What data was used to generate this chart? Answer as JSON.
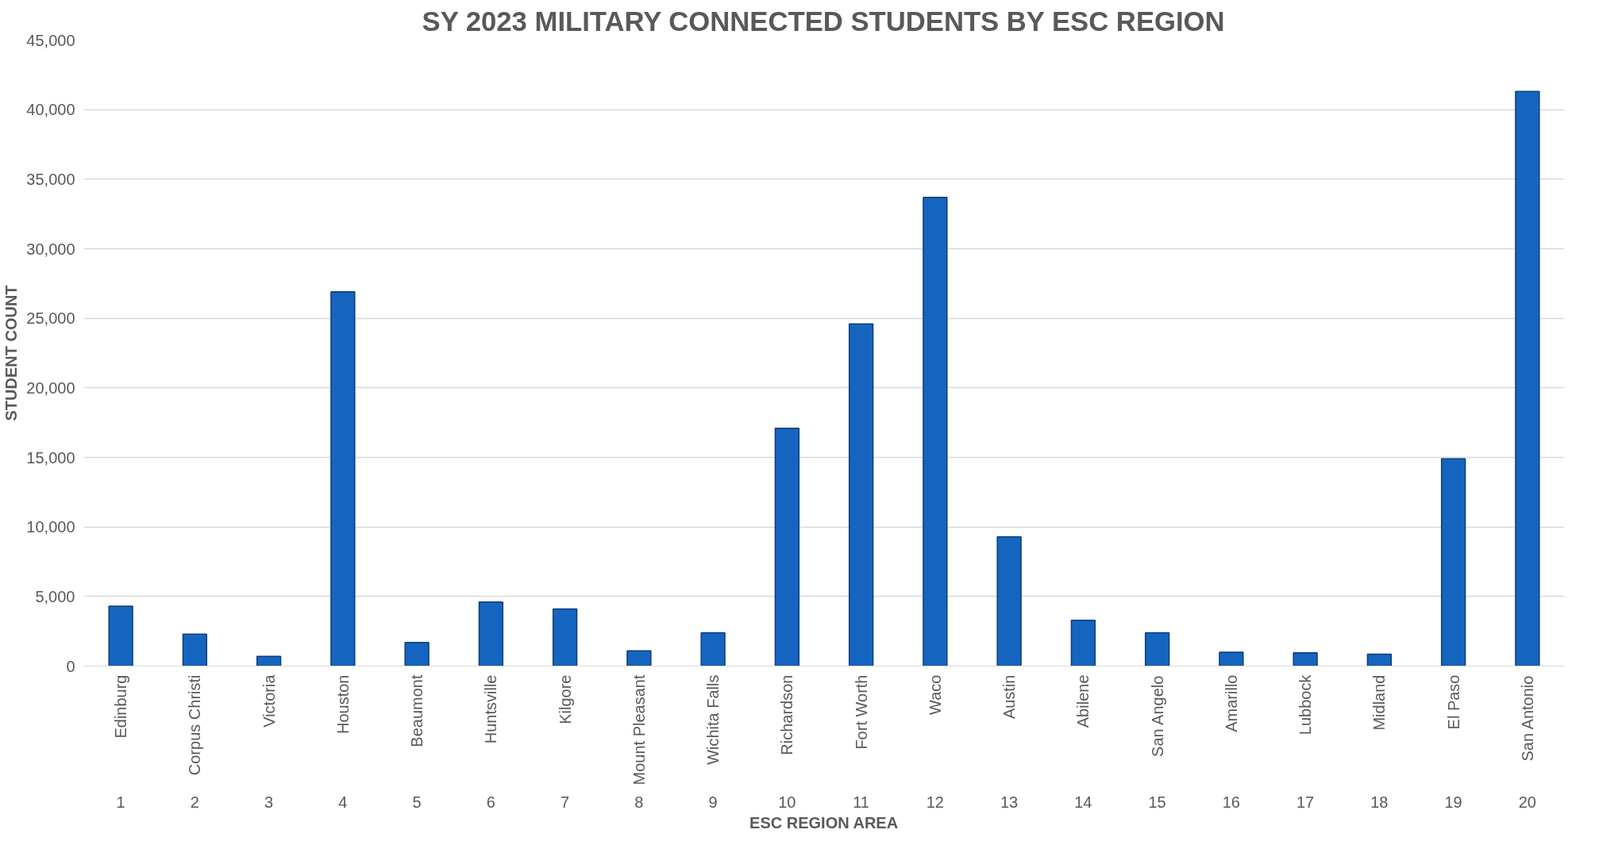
{
  "chart_data": {
    "type": "bar",
    "title": "SY 2023 MILITARY CONNECTED STUDENTS BY ESC REGION",
    "xlabel": "ESC REGION AREA",
    "ylabel": "STUDENT COUNT",
    "x": [
      1,
      2,
      3,
      4,
      5,
      6,
      7,
      8,
      9,
      10,
      11,
      12,
      13,
      14,
      15,
      16,
      17,
      18,
      19,
      20
    ],
    "values": [
      4300,
      2300,
      700,
      26900,
      1700,
      4600,
      4100,
      1100,
      2400,
      17100,
      24600,
      33700,
      9300,
      3300,
      2400,
      1000,
      950,
      850,
      14900,
      41300
    ],
    "color": "#1565c0",
    "xlim": [
      0.5,
      20.5
    ],
    "xticks": [
      1,
      2,
      3,
      4,
      5,
      6,
      7,
      8,
      9,
      10,
      11,
      12,
      13,
      14,
      15,
      16,
      17,
      18,
      19,
      20
    ],
    "ylim": [
      0,
      45000
    ],
    "yticks": [
      {
        "value": 0,
        "label": "0"
      },
      {
        "value": 5000,
        "label": "5,000"
      },
      {
        "value": 10000,
        "label": "10,000"
      },
      {
        "value": 15000,
        "label": "15,000"
      },
      {
        "value": 20000,
        "label": "20,000"
      },
      {
        "value": 25000,
        "label": "25,000"
      },
      {
        "value": 30000,
        "label": "30,000"
      },
      {
        "value": 35000,
        "label": "35,000"
      },
      {
        "value": 40000,
        "label": "40,000"
      },
      {
        "value": 45000,
        "label": "45,000"
      }
    ],
    "grid": "y",
    "annotations": [
      "Edinburg",
      "Corpus Christi",
      "Victoria",
      "Houston",
      "Beaumont",
      "Huntsville",
      "Kilgore",
      "Mount Pleasant",
      "Wichita Falls",
      "Richardson",
      "Fort Worth",
      "Waco",
      "Austin",
      "Abilene",
      "San Angelo",
      "Amarillo",
      "Lubbock",
      "Midland",
      "El Paso",
      "San Antonio"
    ]
  }
}
